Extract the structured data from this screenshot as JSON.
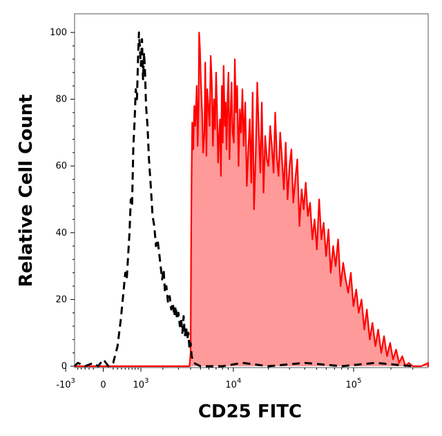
{
  "chart_data": {
    "type": "area",
    "title": "",
    "xlabel": "CD25 FITC",
    "ylabel": "Relative Cell Count",
    "x_scale": "biexponential",
    "xlim": [
      -1500,
      600000
    ],
    "ylim": [
      0,
      105
    ],
    "grid": false,
    "legend": "none",
    "x_ticks": [
      {
        "base": "-10",
        "exp": "3",
        "value": -1000
      },
      {
        "base": "0",
        "exp": "",
        "value": 0
      },
      {
        "base": "10",
        "exp": "3",
        "value": 1000
      },
      {
        "base": "10",
        "exp": "4",
        "value": 10000
      },
      {
        "base": "10",
        "exp": "5",
        "value": 100000
      }
    ],
    "y_ticks": [
      "0",
      "20",
      "40",
      "60",
      "80",
      "100"
    ],
    "series": [
      {
        "style": "dashed-black",
        "color": "#000000",
        "points": [
          [
            -900,
            0
          ],
          [
            -600,
            1
          ],
          [
            -400,
            0
          ],
          [
            -200,
            1
          ],
          [
            -100,
            0
          ],
          [
            0,
            2
          ],
          [
            100,
            0
          ],
          [
            200,
            1
          ],
          [
            300,
            6
          ],
          [
            380,
            14
          ],
          [
            450,
            22
          ],
          [
            500,
            28
          ],
          [
            540,
            26
          ],
          [
            580,
            33
          ],
          [
            620,
            40
          ],
          [
            660,
            50
          ],
          [
            700,
            48
          ],
          [
            740,
            66
          ],
          [
            780,
            73
          ],
          [
            820,
            83
          ],
          [
            860,
            80
          ],
          [
            900,
            93
          ],
          [
            930,
            100
          ],
          [
            960,
            96
          ],
          [
            1000,
            90
          ],
          [
            1040,
            98
          ],
          [
            1080,
            86
          ],
          [
            1120,
            94
          ],
          [
            1160,
            88
          ],
          [
            1200,
            78
          ],
          [
            1260,
            72
          ],
          [
            1320,
            62
          ],
          [
            1400,
            54
          ],
          [
            1480,
            45
          ],
          [
            1560,
            42
          ],
          [
            1640,
            36
          ],
          [
            1720,
            38
          ],
          [
            1800,
            34
          ],
          [
            1880,
            30
          ],
          [
            1960,
            26
          ],
          [
            2040,
            29
          ],
          [
            2120,
            22
          ],
          [
            2200,
            24
          ],
          [
            2300,
            19
          ],
          [
            2400,
            21
          ],
          [
            2500,
            17
          ],
          [
            2600,
            19
          ],
          [
            2700,
            15
          ],
          [
            2800,
            18
          ],
          [
            2900,
            14
          ],
          [
            3000,
            16
          ],
          [
            3100,
            12
          ],
          [
            3200,
            14
          ],
          [
            3300,
            10
          ],
          [
            3400,
            15
          ],
          [
            3500,
            9
          ],
          [
            3600,
            12
          ],
          [
            3700,
            8
          ],
          [
            3800,
            10
          ],
          [
            3900,
            5
          ],
          [
            4000,
            7
          ],
          [
            4100,
            3
          ],
          [
            4300,
            1
          ],
          [
            5000,
            0
          ],
          [
            8000,
            0
          ],
          [
            12000,
            1
          ],
          [
            20000,
            0
          ],
          [
            40000,
            1
          ],
          [
            80000,
            0
          ],
          [
            150000,
            1
          ],
          [
            300000,
            0
          ]
        ]
      },
      {
        "style": "filled-red",
        "color": "#ff0000",
        "fill": "#ff9a9a",
        "points": [
          [
            -1500,
            0
          ],
          [
            -500,
            0
          ],
          [
            0,
            0
          ],
          [
            1000,
            0
          ],
          [
            2000,
            0
          ],
          [
            3000,
            0
          ],
          [
            3900,
            0
          ],
          [
            4000,
            4
          ],
          [
            4050,
            35
          ],
          [
            4100,
            58
          ],
          [
            4150,
            73
          ],
          [
            4250,
            65
          ],
          [
            4350,
            78
          ],
          [
            4450,
            72
          ],
          [
            4550,
            80
          ],
          [
            4600,
            84
          ],
          [
            4700,
            66
          ],
          [
            4800,
            80
          ],
          [
            4850,
            100
          ],
          [
            4950,
            95
          ],
          [
            5050,
            85
          ],
          [
            5200,
            75
          ],
          [
            5300,
            64
          ],
          [
            5450,
            70
          ],
          [
            5550,
            91
          ],
          [
            5700,
            63
          ],
          [
            5800,
            83
          ],
          [
            5950,
            78
          ],
          [
            6100,
            72
          ],
          [
            6250,
            93
          ],
          [
            6400,
            85
          ],
          [
            6550,
            66
          ],
          [
            6700,
            80
          ],
          [
            6850,
            71
          ],
          [
            7000,
            88
          ],
          [
            7150,
            77
          ],
          [
            7300,
            61
          ],
          [
            7450,
            69
          ],
          [
            7600,
            74
          ],
          [
            7750,
            57
          ],
          [
            7900,
            84
          ],
          [
            8050,
            67
          ],
          [
            8200,
            90
          ],
          [
            8400,
            72
          ],
          [
            8550,
            79
          ],
          [
            8700,
            65
          ],
          [
            8900,
            81
          ],
          [
            9050,
            88
          ],
          [
            9250,
            62
          ],
          [
            9450,
            75
          ],
          [
            9650,
            85
          ],
          [
            9850,
            70
          ],
          [
            10100,
            67
          ],
          [
            10300,
            92
          ],
          [
            10550,
            76
          ],
          [
            10800,
            84
          ],
          [
            11100,
            60
          ],
          [
            11400,
            77
          ],
          [
            11700,
            70
          ],
          [
            12000,
            83
          ],
          [
            12300,
            66
          ],
          [
            12700,
            79
          ],
          [
            13100,
            54
          ],
          [
            13500,
            65
          ],
          [
            13900,
            74
          ],
          [
            14300,
            55
          ],
          [
            14700,
            82
          ],
          [
            15100,
            47
          ],
          [
            15600,
            63
          ],
          [
            16100,
            85
          ],
          [
            16600,
            70
          ],
          [
            17100,
            58
          ],
          [
            17600,
            79
          ],
          [
            18200,
            52
          ],
          [
            18800,
            69
          ],
          [
            19400,
            62
          ],
          [
            20000,
            60
          ],
          [
            20700,
            72
          ],
          [
            21400,
            66
          ],
          [
            22100,
            58
          ],
          [
            22800,
            76
          ],
          [
            23500,
            63
          ],
          [
            24300,
            57
          ],
          [
            25100,
            70
          ],
          [
            26000,
            62
          ],
          [
            26900,
            53
          ],
          [
            27900,
            67
          ],
          [
            28900,
            50
          ],
          [
            30000,
            60
          ],
          [
            31100,
            65
          ],
          [
            32200,
            49
          ],
          [
            33500,
            56
          ],
          [
            34800,
            62
          ],
          [
            36200,
            42
          ],
          [
            37700,
            53
          ],
          [
            39200,
            47
          ],
          [
            40800,
            55
          ],
          [
            42500,
            45
          ],
          [
            44300,
            49
          ],
          [
            46200,
            38
          ],
          [
            48200,
            44
          ],
          [
            50300,
            35
          ],
          [
            52500,
            50
          ],
          [
            54800,
            38
          ],
          [
            57200,
            43
          ],
          [
            59800,
            33
          ],
          [
            62500,
            41
          ],
          [
            65300,
            28
          ],
          [
            68300,
            36
          ],
          [
            71500,
            30
          ],
          [
            74900,
            38
          ],
          [
            78500,
            24
          ],
          [
            82300,
            31
          ],
          [
            86300,
            26
          ],
          [
            90500,
            22
          ],
          [
            95000,
            28
          ],
          [
            99800,
            18
          ],
          [
            105000,
            23
          ],
          [
            110000,
            16
          ],
          [
            116000,
            20
          ],
          [
            122000,
            11
          ],
          [
            128000,
            17
          ],
          [
            135000,
            8
          ],
          [
            142000,
            13
          ],
          [
            150000,
            6
          ],
          [
            158000,
            11
          ],
          [
            167000,
            4
          ],
          [
            176000,
            9
          ],
          [
            186000,
            3
          ],
          [
            197000,
            7
          ],
          [
            208000,
            2
          ],
          [
            220000,
            5
          ],
          [
            233000,
            1
          ],
          [
            247000,
            3
          ],
          [
            262000,
            0
          ],
          [
            278000,
            1
          ],
          [
            300000,
            0
          ],
          [
            350000,
            0
          ],
          [
            450000,
            1
          ],
          [
            500000,
            0
          ],
          [
            580000,
            1
          ]
        ]
      }
    ]
  }
}
